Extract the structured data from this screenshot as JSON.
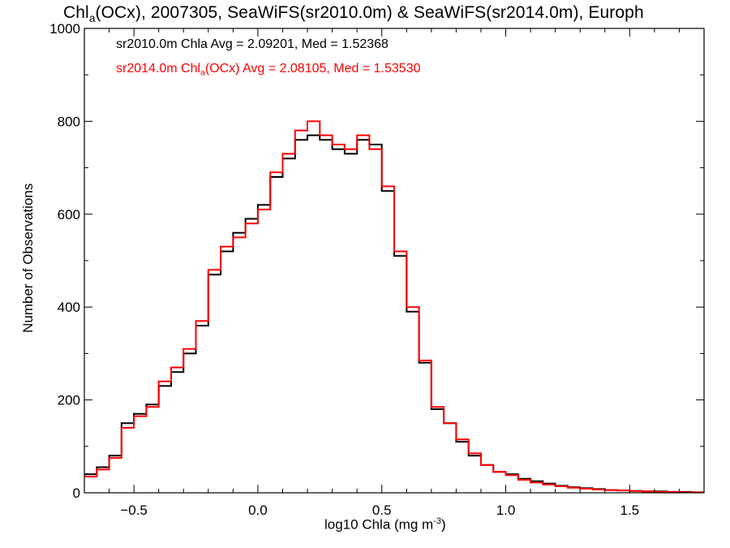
{
  "title": {
    "prefix": "Chl",
    "subscript": "a",
    "suffix": "(OCx), 2007305, SeaWiFS(sr2010.0m) & SeaWiFS(sr2014.0m), Europh"
  },
  "colors": {
    "series1": "#000000",
    "series2": "#ff0000",
    "axes": "#000000"
  },
  "chart_data": {
    "type": "line",
    "step": true,
    "title": "Chla(OCx), 2007305, SeaWiFS(sr2010.0m) & SeaWiFS(sr2014.0m), Europh",
    "xlabel_text": "log10 Chla (mg m",
    "xlabel_sup": "-3",
    "xlabel_close": ")",
    "ylabel": "Number of Observations",
    "xlim": [
      -0.7,
      1.8
    ],
    "ylim": [
      0,
      1000
    ],
    "xticks": [
      -0.5,
      0.0,
      0.5,
      1.0,
      1.5
    ],
    "xtick_labels": [
      "−0.5",
      "0.0",
      "0.5",
      "1.0",
      "1.5"
    ],
    "yticks": [
      0,
      200,
      400,
      600,
      800,
      1000
    ],
    "ytick_labels": [
      "0",
      "200",
      "400",
      "600",
      "800",
      "1000"
    ],
    "grid": false,
    "legend_placement": "top-left",
    "series": [
      {
        "legend_text": "sr2010.0m Chla Avg = 2.09201, Med = 1.52368",
        "color": "#000000",
        "x": [
          -0.7,
          -0.65,
          -0.6,
          -0.55,
          -0.5,
          -0.45,
          -0.4,
          -0.35,
          -0.3,
          -0.25,
          -0.2,
          -0.15,
          -0.1,
          -0.05,
          0.0,
          0.05,
          0.1,
          0.15,
          0.2,
          0.25,
          0.3,
          0.35,
          0.4,
          0.45,
          0.5,
          0.55,
          0.6,
          0.65,
          0.7,
          0.75,
          0.8,
          0.85,
          0.9,
          0.95,
          1.0,
          1.05,
          1.1,
          1.15,
          1.2,
          1.25,
          1.3,
          1.35,
          1.4,
          1.45,
          1.5,
          1.55,
          1.6,
          1.65,
          1.7,
          1.75,
          1.8
        ],
        "y": [
          40,
          55,
          80,
          150,
          170,
          190,
          230,
          260,
          300,
          360,
          470,
          520,
          560,
          590,
          620,
          680,
          720,
          760,
          770,
          760,
          740,
          730,
          760,
          750,
          650,
          510,
          390,
          280,
          180,
          150,
          110,
          80,
          60,
          45,
          40,
          30,
          25,
          20,
          15,
          12,
          10,
          8,
          6,
          5,
          4,
          3,
          3,
          2,
          2,
          1,
          1
        ]
      },
      {
        "legend_text": "sr2014.0m Chla(OCx) Avg = 2.08105, Med = 1.53530",
        "color": "#ff0000",
        "x": [
          -0.7,
          -0.65,
          -0.6,
          -0.55,
          -0.5,
          -0.45,
          -0.4,
          -0.35,
          -0.3,
          -0.25,
          -0.2,
          -0.15,
          -0.1,
          -0.05,
          0.0,
          0.05,
          0.1,
          0.15,
          0.2,
          0.25,
          0.3,
          0.35,
          0.4,
          0.45,
          0.5,
          0.55,
          0.6,
          0.65,
          0.7,
          0.75,
          0.8,
          0.85,
          0.9,
          0.95,
          1.0,
          1.05,
          1.1,
          1.15,
          1.2,
          1.25,
          1.3,
          1.35,
          1.4,
          1.45,
          1.5,
          1.55,
          1.6,
          1.65,
          1.7,
          1.75,
          1.8
        ],
        "y": [
          35,
          50,
          75,
          140,
          165,
          185,
          240,
          270,
          310,
          370,
          480,
          530,
          550,
          580,
          610,
          690,
          730,
          780,
          800,
          770,
          750,
          740,
          770,
          740,
          660,
          520,
          400,
          285,
          185,
          150,
          115,
          85,
          60,
          45,
          38,
          28,
          22,
          18,
          14,
          11,
          9,
          7,
          6,
          5,
          4,
          3,
          2,
          2,
          1,
          1,
          1
        ]
      }
    ]
  },
  "legend": [
    {
      "label_start": "sr2010.0m Chla Avg = 2.09201, Med = 1.52368",
      "label_sub": "",
      "label_end": ""
    },
    {
      "label_start": "sr2014.0m Chl",
      "label_sub": "a",
      "label_end": "(OCx) Avg = 2.08105, Med = 1.53530"
    }
  ]
}
